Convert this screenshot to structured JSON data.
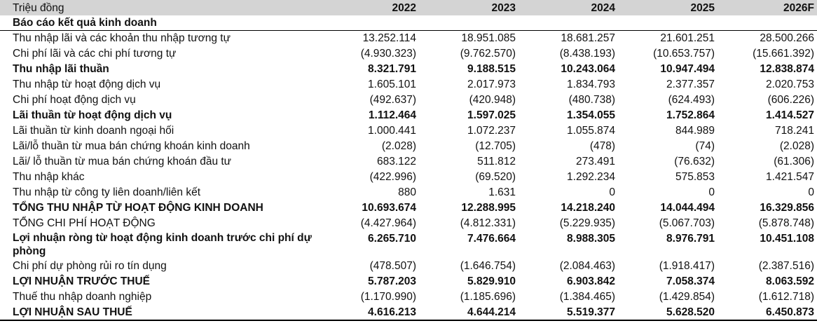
{
  "table": {
    "header": {
      "label": "Triệu đồng",
      "years": [
        "2022",
        "2023",
        "2024",
        "2025",
        "2026F"
      ]
    },
    "section_title": "Báo cáo kết quả kinh doanh",
    "rows": [
      {
        "label": "Thu nhập lãi và các khoản thu nhập tương tự",
        "values": [
          "13.252.114",
          "18.951.085",
          "18.681.257",
          "21.601.251",
          "28.500.266"
        ],
        "bold": false
      },
      {
        "label": "Chi phí lãi và các chi phí tương tự",
        "values": [
          "(4.930.323)",
          "(9.762.570)",
          "(8.438.193)",
          "(10.653.757)",
          "(15.661.392)"
        ],
        "bold": false
      },
      {
        "label": "Thu nhập lãi thuần",
        "values": [
          "8.321.791",
          "9.188.515",
          "10.243.064",
          "10.947.494",
          "12.838.874"
        ],
        "bold": true
      },
      {
        "label": "Thu nhập từ hoạt động dịch vụ",
        "values": [
          "1.605.101",
          "2.017.973",
          "1.834.793",
          "2.377.357",
          "2.020.753"
        ],
        "bold": false
      },
      {
        "label": "Chi phí hoạt động dịch vụ",
        "values": [
          "(492.637)",
          "(420.948)",
          "(480.738)",
          "(624.493)",
          "(606.226)"
        ],
        "bold": false
      },
      {
        "label": "Lãi thuần từ hoạt động dịch vụ",
        "values": [
          "1.112.464",
          "1.597.025",
          "1.354.055",
          "1.752.864",
          "1.414.527"
        ],
        "bold": true
      },
      {
        "label": "Lãi thuần từ kinh doanh ngoại hối",
        "values": [
          "1.000.441",
          "1.072.237",
          "1.055.874",
          "844.989",
          "718.241"
        ],
        "bold": false
      },
      {
        "label": "Lãi/lỗ thuần từ mua bán chứng khoán kinh doanh",
        "values": [
          "(2.028)",
          "(12.705)",
          "(478)",
          "(74)",
          "(2.028)"
        ],
        "bold": false
      },
      {
        "label": "Lãi/ lỗ thuần từ mua bán chứng khoán đầu tư",
        "values": [
          "683.122",
          "511.812",
          "273.491",
          "(76.632)",
          "(61.306)"
        ],
        "bold": false
      },
      {
        "label": "Thu nhập khác",
        "values": [
          "(422.996)",
          "(69.520)",
          "1.292.234",
          "575.853",
          "1.421.547"
        ],
        "bold": false
      },
      {
        "label": "Thu nhập từ công ty liên doanh/liên kết",
        "values": [
          "880",
          "1.631",
          "0",
          "0",
          "0"
        ],
        "bold": false
      },
      {
        "label": "TỔNG THU NHẬP TỪ HOẠT ĐỘNG KINH DOANH",
        "values": [
          "10.693.674",
          "12.288.995",
          "14.218.240",
          "14.044.494",
          "16.329.856"
        ],
        "bold": true
      },
      {
        "label": "TỔNG CHI PHÍ HOẠT ĐỘNG",
        "values": [
          "(4.427.964)",
          "(4.812.331)",
          "(5.229.935)",
          "(5.067.703)",
          "(5.878.748)"
        ],
        "bold": false
      },
      {
        "label": "Lợi nhuận ròng từ hoạt động kinh doanh trước chi phí dự phòng",
        "values": [
          "6.265.710",
          "7.476.664",
          "8.988.305",
          "8.976.791",
          "10.451.108"
        ],
        "bold": true,
        "double": true
      },
      {
        "label": "Chi phí dự phòng rủi ro tín dụng",
        "values": [
          "(478.507)",
          "(1.646.754)",
          "(2.084.463)",
          "(1.918.417)",
          "(2.387.516)"
        ],
        "bold": false
      },
      {
        "label": "LỢI NHUẬN TRƯỚC THUẾ",
        "values": [
          "5.787.203",
          "5.829.910",
          "6.903.842",
          "7.058.374",
          "8.063.592"
        ],
        "bold": true
      },
      {
        "label": "Thuế thu nhập doanh nghiệp",
        "values": [
          "(1.170.990)",
          "(1.185.696)",
          "(1.384.465)",
          "(1.429.854)",
          "(1.612.718)"
        ],
        "bold": false
      },
      {
        "label": "LỢI NHUẬN SAU THUẾ",
        "values": [
          "4.616.213",
          "4.644.214",
          "5.519.377",
          "5.628.520",
          "6.450.873"
        ],
        "bold": true
      }
    ]
  }
}
